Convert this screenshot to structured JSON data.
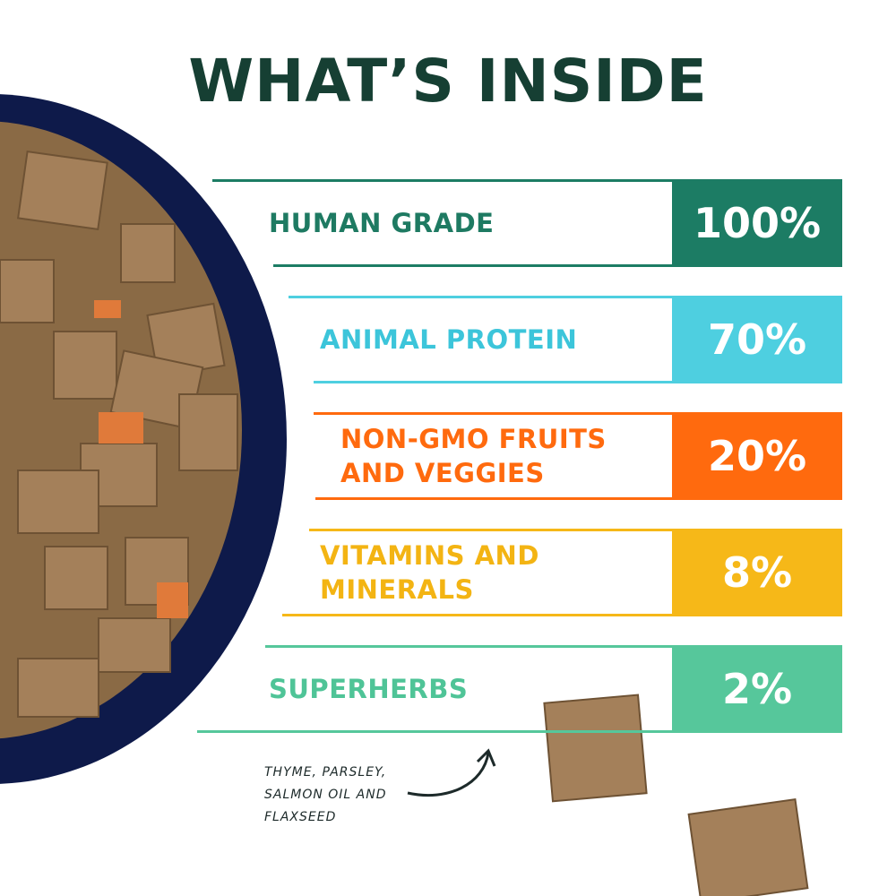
{
  "header": {
    "title": "WHAT’S INSIDE"
  },
  "items": [
    {
      "label_lines": [
        "HUMAN GRADE"
      ],
      "value_label": "100%",
      "color": "#1c7c64",
      "text_color": "#1e7a62"
    },
    {
      "label_lines": [
        "ANIMAL PROTEIN"
      ],
      "value_label": "70%",
      "color": "#4ecfe0",
      "text_color": "#3cc5da"
    },
    {
      "label_lines": [
        "NON-GMO FRUITS",
        "AND VEGGIES"
      ],
      "value_label": "20%",
      "color": "#ff6a0e",
      "text_color": "#ff6a0e"
    },
    {
      "label_lines": [
        "VITAMINS AND",
        "MINERALS"
      ],
      "value_label": "8%",
      "color": "#f6b818",
      "text_color": "#f3b413"
    },
    {
      "label_lines": [
        "SUPERHERBS"
      ],
      "value_label": "2%",
      "color": "#56c79b",
      "text_color": "#4fc497"
    }
  ],
  "note": {
    "lines": [
      "THYME, PARSLEY,",
      "SALMON OIL AND",
      "FLAXSEED"
    ]
  }
}
